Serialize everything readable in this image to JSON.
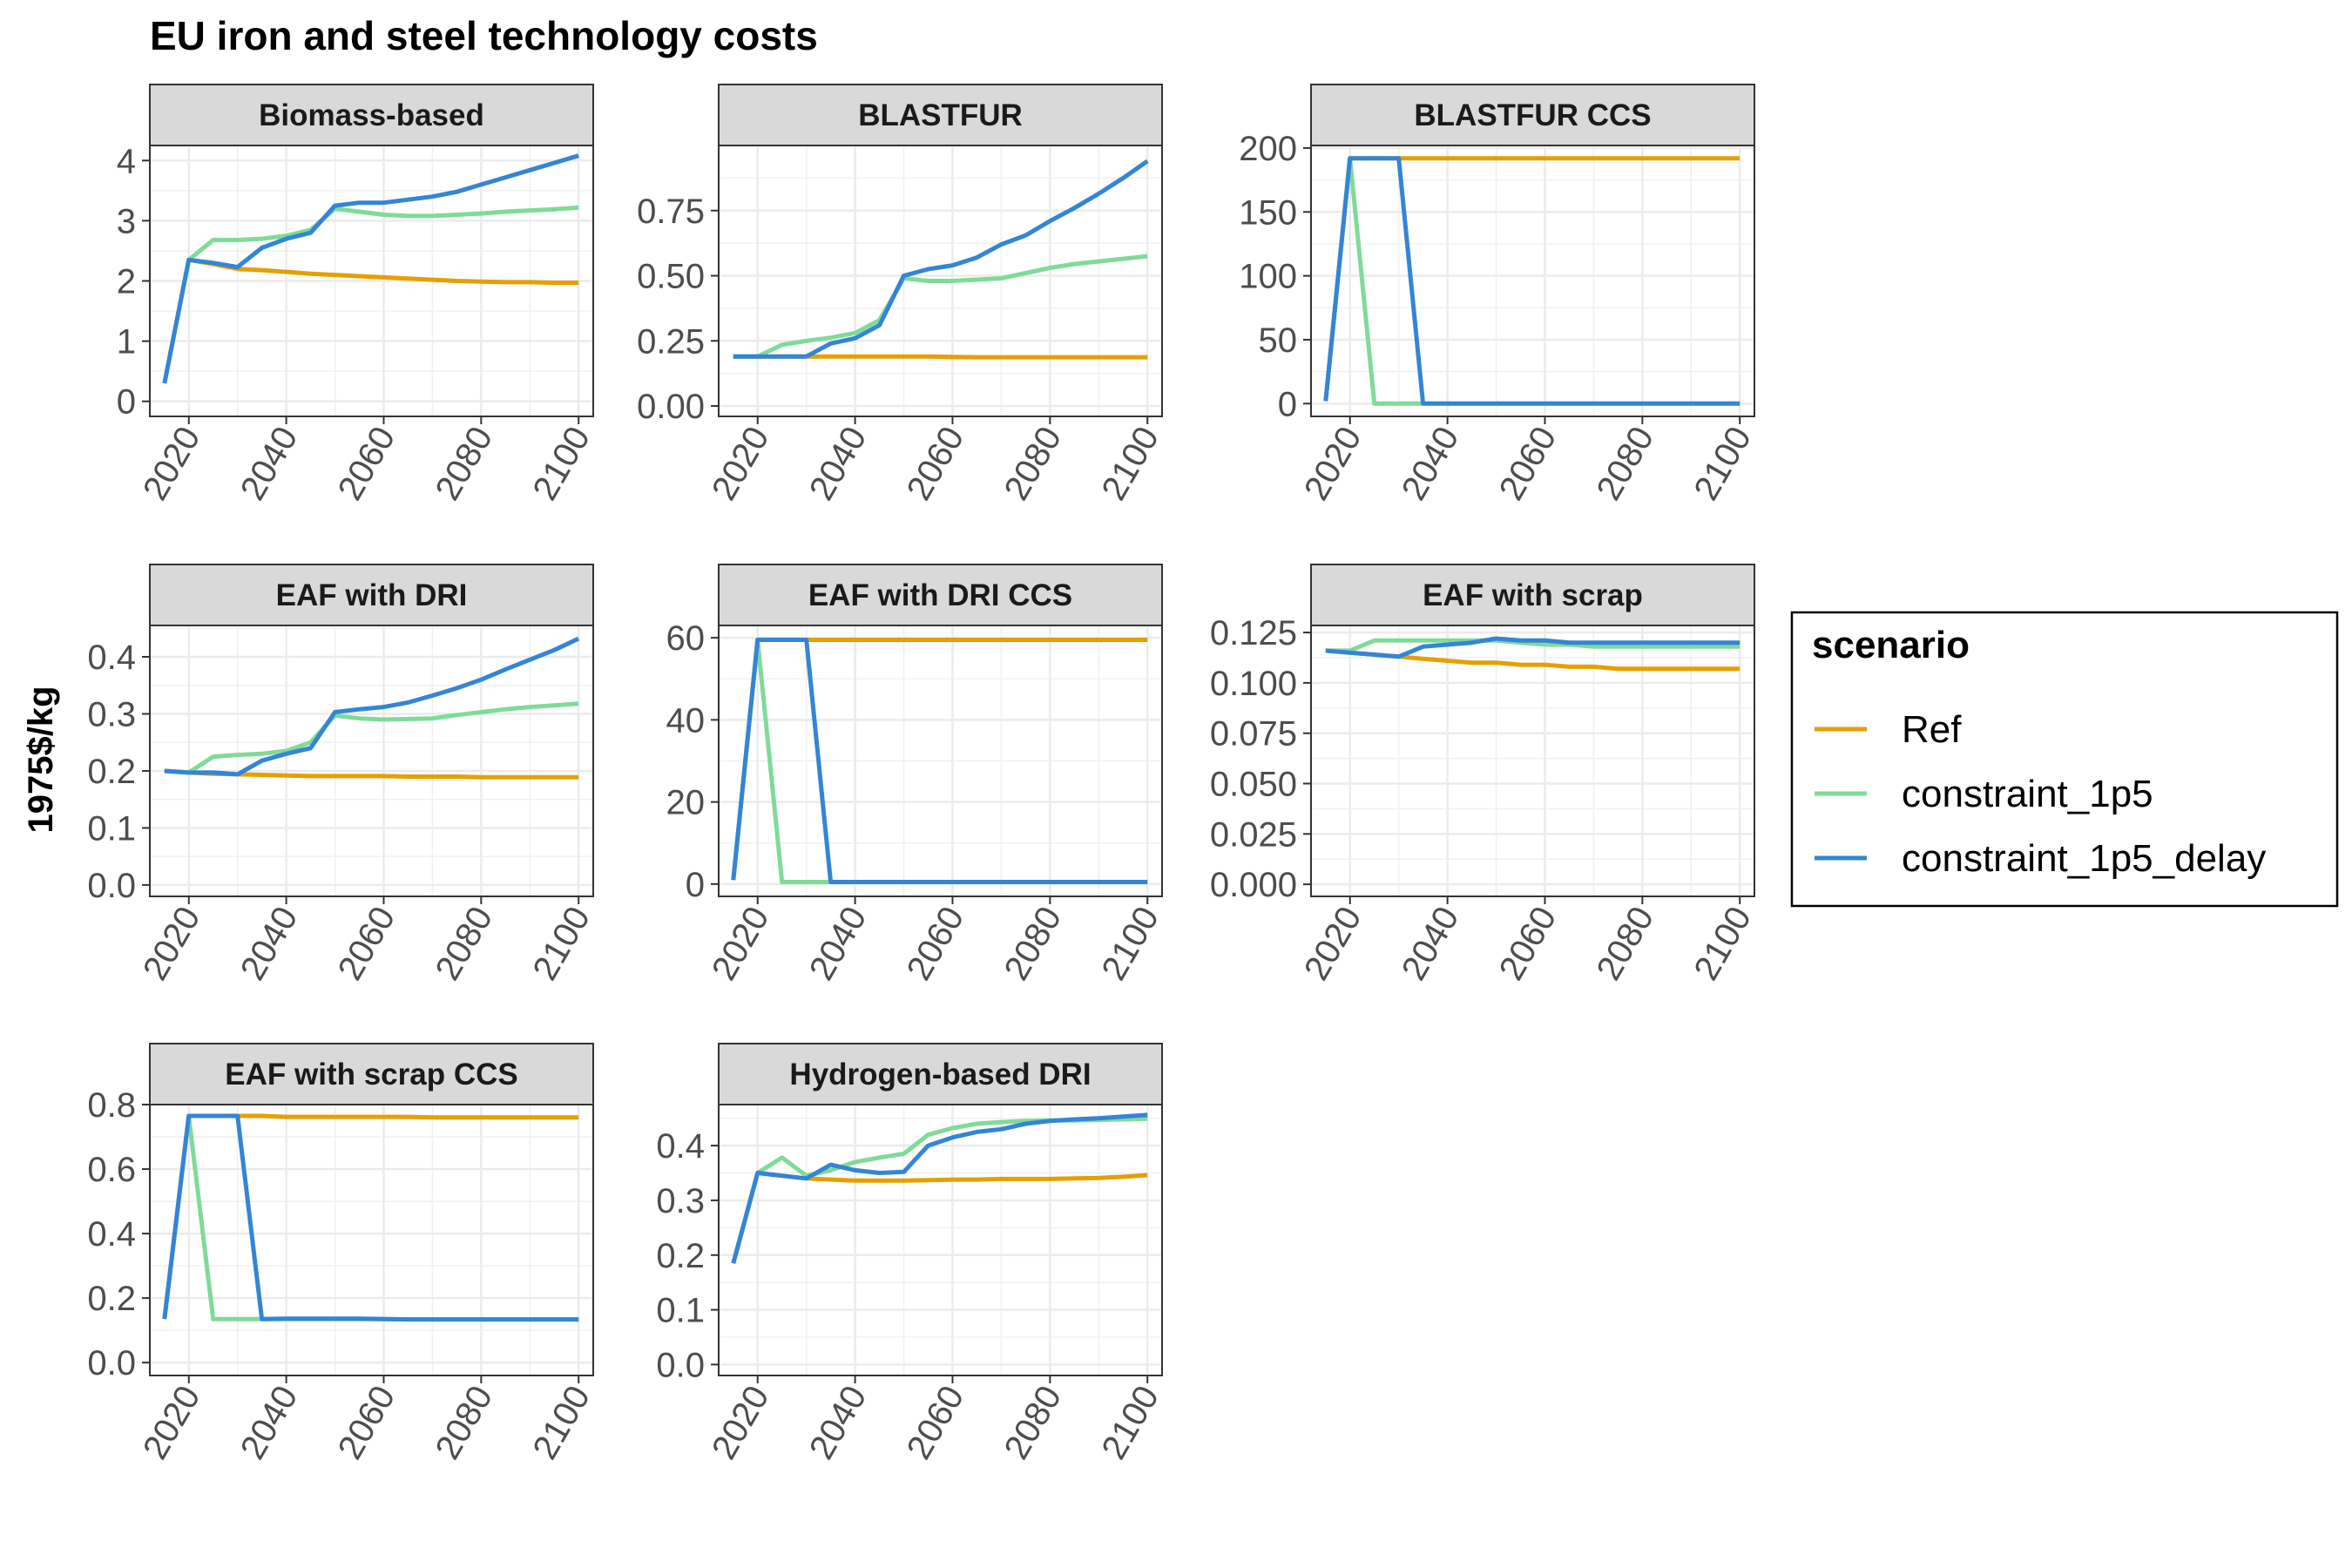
{
  "chart_data": {
    "type": "line",
    "title": "EU iron and steel technology costs",
    "ylabel": "1975$/kg",
    "xlabel": "",
    "xlim": [
      2012,
      2103
    ],
    "x_ticks": [
      2020,
      2040,
      2060,
      2080,
      2100
    ],
    "grid": true,
    "legend": {
      "title": "scenario",
      "position": "right",
      "entries": [
        {
          "name": "Ref",
          "color": "#E69F00"
        },
        {
          "name": "constraint_1p5",
          "color": "#7FDB98"
        },
        {
          "name": "constraint_1p5_delay",
          "color": "#3385D6"
        }
      ]
    },
    "x": [
      2015,
      2020,
      2025,
      2030,
      2035,
      2040,
      2045,
      2050,
      2055,
      2060,
      2065,
      2070,
      2075,
      2080,
      2085,
      2090,
      2095,
      2100
    ],
    "facets": [
      {
        "name": "Biomass-based",
        "ylim": [
          -0.25,
          4.25
        ],
        "y_ticks": [
          0,
          1,
          2,
          3,
          4
        ],
        "y_tick_labels": [
          "0",
          "1",
          "2",
          "3",
          "4"
        ],
        "series": [
          {
            "name": "Ref",
            "values": [
              0.3,
              2.35,
              2.28,
              2.2,
              2.18,
              2.15,
              2.12,
              2.1,
              2.08,
              2.06,
              2.04,
              2.02,
              2.0,
              1.99,
              1.98,
              1.98,
              1.97,
              1.97
            ]
          },
          {
            "name": "constraint_1p5",
            "values": [
              0.3,
              2.35,
              2.68,
              2.68,
              2.7,
              2.75,
              2.85,
              3.2,
              3.15,
              3.1,
              3.08,
              3.08,
              3.1,
              3.12,
              3.15,
              3.17,
              3.19,
              3.22
            ]
          },
          {
            "name": "constraint_1p5_delay",
            "values": [
              0.3,
              2.35,
              2.3,
              2.23,
              2.55,
              2.7,
              2.8,
              3.25,
              3.3,
              3.3,
              3.35,
              3.4,
              3.48,
              3.6,
              3.72,
              3.84,
              3.96,
              4.08
            ]
          }
        ]
      },
      {
        "name": "BLASTFUR",
        "ylim": [
          -0.04,
          1.0
        ],
        "y_ticks": [
          0,
          0.25,
          0.5,
          0.75
        ],
        "y_tick_labels": [
          "0.00",
          "0.25",
          "0.50",
          "0.75"
        ],
        "series": [
          {
            "name": "Ref",
            "values": [
              0.19,
              0.19,
              0.19,
              0.19,
              0.19,
              0.19,
              0.19,
              0.19,
              0.19,
              0.188,
              0.187,
              0.187,
              0.187,
              0.187,
              0.187,
              0.187,
              0.187,
              0.187
            ]
          },
          {
            "name": "constraint_1p5",
            "values": [
              0.19,
              0.19,
              0.235,
              0.25,
              0.262,
              0.28,
              0.33,
              0.49,
              0.48,
              0.48,
              0.485,
              0.49,
              0.51,
              0.53,
              0.545,
              0.555,
              0.565,
              0.575
            ]
          },
          {
            "name": "constraint_1p5_delay",
            "values": [
              0.19,
              0.19,
              0.19,
              0.19,
              0.24,
              0.26,
              0.31,
              0.5,
              0.525,
              0.54,
              0.57,
              0.62,
              0.655,
              0.71,
              0.76,
              0.815,
              0.875,
              0.94
            ]
          }
        ]
      },
      {
        "name": "BLASTFUR CCS",
        "ylim": [
          -10,
          202
        ],
        "y_ticks": [
          0,
          50,
          100,
          150,
          200
        ],
        "y_tick_labels": [
          "0",
          "50",
          "100",
          "150",
          "200"
        ],
        "series": [
          {
            "name": "Ref",
            "values": [
              2,
              192,
              192,
              192,
              192,
              192,
              192,
              192,
              192,
              192,
              192,
              192,
              192,
              192,
              192,
              192,
              192,
              192
            ]
          },
          {
            "name": "constraint_1p5",
            "values": [
              2,
              192,
              0,
              0,
              0,
              0,
              0,
              0,
              0,
              0,
              0,
              0,
              0,
              0,
              0,
              0,
              0,
              0
            ]
          },
          {
            "name": "constraint_1p5_delay",
            "values": [
              2,
              192,
              192,
              192,
              0,
              0,
              0,
              0,
              0,
              0,
              0,
              0,
              0,
              0,
              0,
              0,
              0,
              0
            ]
          }
        ]
      },
      {
        "name": "EAF with DRI",
        "ylim": [
          -0.02,
          0.455
        ],
        "y_ticks": [
          0,
          0.1,
          0.2,
          0.3,
          0.4
        ],
        "y_tick_labels": [
          "0.0",
          "0.1",
          "0.2",
          "0.3",
          "0.4"
        ],
        "series": [
          {
            "name": "Ref",
            "values": [
              0.2,
              0.197,
              0.195,
              0.194,
              0.193,
              0.192,
              0.191,
              0.191,
              0.191,
              0.191,
              0.19,
              0.19,
              0.19,
              0.189,
              0.189,
              0.189,
              0.189,
              0.189
            ]
          },
          {
            "name": "constraint_1p5",
            "values": [
              0.2,
              0.197,
              0.225,
              0.228,
              0.23,
              0.235,
              0.25,
              0.297,
              0.292,
              0.29,
              0.291,
              0.292,
              0.298,
              0.303,
              0.308,
              0.312,
              0.315,
              0.318
            ]
          },
          {
            "name": "constraint_1p5_delay",
            "values": [
              0.2,
              0.197,
              0.197,
              0.194,
              0.218,
              0.23,
              0.24,
              0.303,
              0.308,
              0.312,
              0.32,
              0.332,
              0.345,
              0.36,
              0.378,
              0.395,
              0.412,
              0.432
            ]
          }
        ]
      },
      {
        "name": "EAF with DRI CCS",
        "ylim": [
          -3,
          63
        ],
        "y_ticks": [
          0,
          20,
          40,
          60
        ],
        "y_tick_labels": [
          "0",
          "20",
          "40",
          "60"
        ],
        "series": [
          {
            "name": "Ref",
            "values": [
              1,
              59.5,
              59.5,
              59.5,
              59.5,
              59.5,
              59.5,
              59.5,
              59.5,
              59.5,
              59.5,
              59.5,
              59.5,
              59.5,
              59.5,
              59.5,
              59.5,
              59.5
            ]
          },
          {
            "name": "constraint_1p5",
            "values": [
              1,
              59.5,
              0.5,
              0.5,
              0.5,
              0.5,
              0.5,
              0.5,
              0.5,
              0.5,
              0.5,
              0.5,
              0.5,
              0.5,
              0.5,
              0.5,
              0.5,
              0.5
            ]
          },
          {
            "name": "constraint_1p5_delay",
            "values": [
              1,
              59.5,
              59.5,
              59.5,
              0.5,
              0.5,
              0.5,
              0.5,
              0.5,
              0.5,
              0.5,
              0.5,
              0.5,
              0.5,
              0.5,
              0.5,
              0.5,
              0.5
            ]
          }
        ]
      },
      {
        "name": "EAF with scrap",
        "ylim": [
          -0.006,
          0.1285
        ],
        "y_ticks": [
          0,
          0.025,
          0.05,
          0.075,
          0.1,
          0.125
        ],
        "y_tick_labels": [
          "0.000",
          "0.025",
          "0.050",
          "0.075",
          "0.100",
          "0.125"
        ],
        "series": [
          {
            "name": "Ref",
            "values": [
              0.116,
              0.115,
              0.114,
              0.113,
              0.112,
              0.111,
              0.11,
              0.11,
              0.109,
              0.109,
              0.108,
              0.108,
              0.107,
              0.107,
              0.107,
              0.107,
              0.107,
              0.107
            ]
          },
          {
            "name": "constraint_1p5",
            "values": [
              0.116,
              0.116,
              0.121,
              0.121,
              0.121,
              0.121,
              0.121,
              0.121,
              0.12,
              0.119,
              0.119,
              0.118,
              0.118,
              0.118,
              0.118,
              0.118,
              0.118,
              0.118
            ]
          },
          {
            "name": "constraint_1p5_delay",
            "values": [
              0.116,
              0.115,
              0.114,
              0.113,
              0.118,
              0.119,
              0.12,
              0.122,
              0.121,
              0.121,
              0.12,
              0.12,
              0.12,
              0.12,
              0.12,
              0.12,
              0.12,
              0.12
            ]
          }
        ]
      },
      {
        "name": "EAF with scrap CCS",
        "ylim": [
          -0.04,
          0.8
        ],
        "y_ticks": [
          0,
          0.2,
          0.4,
          0.6,
          0.8
        ],
        "y_tick_labels": [
          "0.0",
          "0.2",
          "0.4",
          "0.6",
          "0.8"
        ],
        "series": [
          {
            "name": "Ref",
            "values": [
              0.135,
              0.765,
              0.765,
              0.765,
              0.765,
              0.762,
              0.762,
              0.762,
              0.762,
              0.762,
              0.762,
              0.76,
              0.76,
              0.76,
              0.76,
              0.76,
              0.76,
              0.76
            ]
          },
          {
            "name": "constraint_1p5",
            "values": [
              0.135,
              0.765,
              0.135,
              0.135,
              0.135,
              0.135,
              0.135,
              0.135,
              0.135,
              0.135,
              0.134,
              0.134,
              0.134,
              0.134,
              0.134,
              0.134,
              0.134,
              0.134
            ]
          },
          {
            "name": "constraint_1p5_delay",
            "values": [
              0.135,
              0.765,
              0.765,
              0.765,
              0.135,
              0.136,
              0.136,
              0.136,
              0.136,
              0.135,
              0.134,
              0.134,
              0.134,
              0.134,
              0.134,
              0.134,
              0.134,
              0.134
            ]
          }
        ]
      },
      {
        "name": "Hydrogen-based DRI",
        "ylim": [
          -0.02,
          0.475
        ],
        "y_ticks": [
          0,
          0.1,
          0.2,
          0.3,
          0.4
        ],
        "y_tick_labels": [
          "0.0",
          "0.1",
          "0.2",
          "0.3",
          "0.4"
        ],
        "series": [
          {
            "name": "Ref",
            "values": [
              0.185,
              0.35,
              0.345,
              0.34,
              0.338,
              0.336,
              0.336,
              0.336,
              0.337,
              0.338,
              0.338,
              0.339,
              0.339,
              0.339,
              0.34,
              0.341,
              0.343,
              0.346
            ]
          },
          {
            "name": "constraint_1p5",
            "values": [
              0.185,
              0.35,
              0.378,
              0.345,
              0.355,
              0.37,
              0.378,
              0.385,
              0.42,
              0.432,
              0.44,
              0.443,
              0.445,
              0.446,
              0.446,
              0.447,
              0.448,
              0.449
            ]
          },
          {
            "name": "constraint_1p5_delay",
            "values": [
              0.185,
              0.35,
              0.345,
              0.34,
              0.365,
              0.355,
              0.35,
              0.352,
              0.4,
              0.415,
              0.425,
              0.43,
              0.44,
              0.445,
              0.448,
              0.45,
              0.453,
              0.456
            ]
          }
        ]
      }
    ]
  }
}
